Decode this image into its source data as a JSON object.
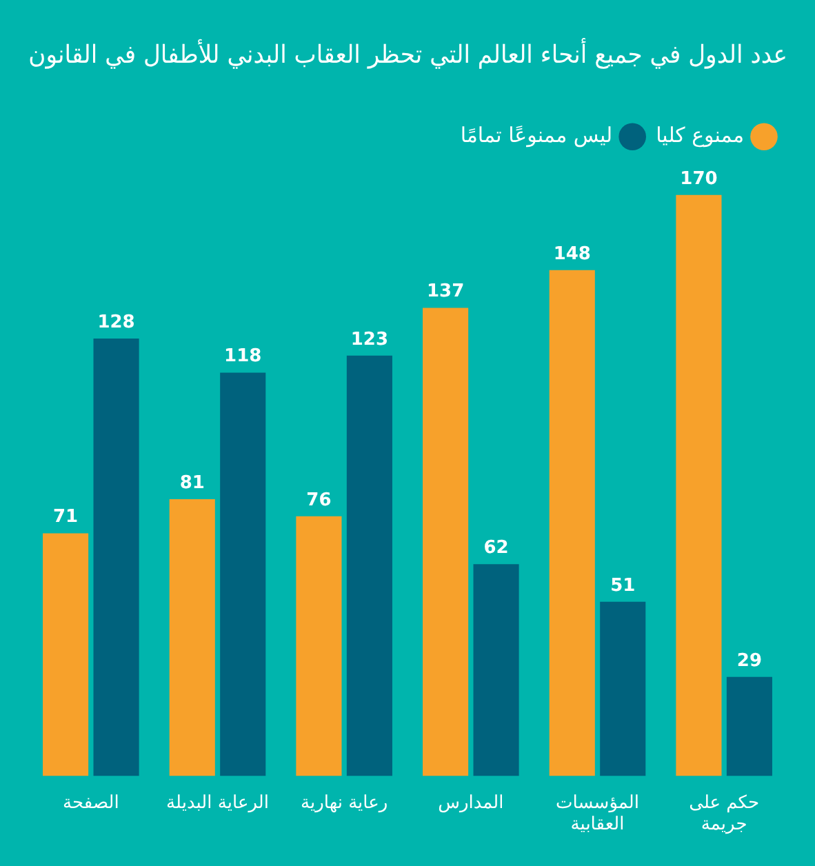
{
  "chart_data": {
    "type": "bar",
    "title": "عدد الدول في جميع أنحاء العالم التي تحظر العقاب البدني للأطفال في القانون",
    "categories": [
      "الصفحة",
      "الرعاية البديلة",
      "رعاية نهارية",
      "المدارس",
      "المؤسسات العقابية",
      "حكم على جريمة"
    ],
    "series": [
      {
        "name": "ممنوع كليا",
        "color": "#f7a12b",
        "values": [
          71,
          81,
          76,
          137,
          148,
          170
        ]
      },
      {
        "name": "ليس ممنوعًا تمامًا",
        "color": "#00627d",
        "values": [
          128,
          118,
          123,
          62,
          51,
          29
        ]
      }
    ],
    "data_labels": true,
    "grid": false,
    "legend": "top right"
  }
}
